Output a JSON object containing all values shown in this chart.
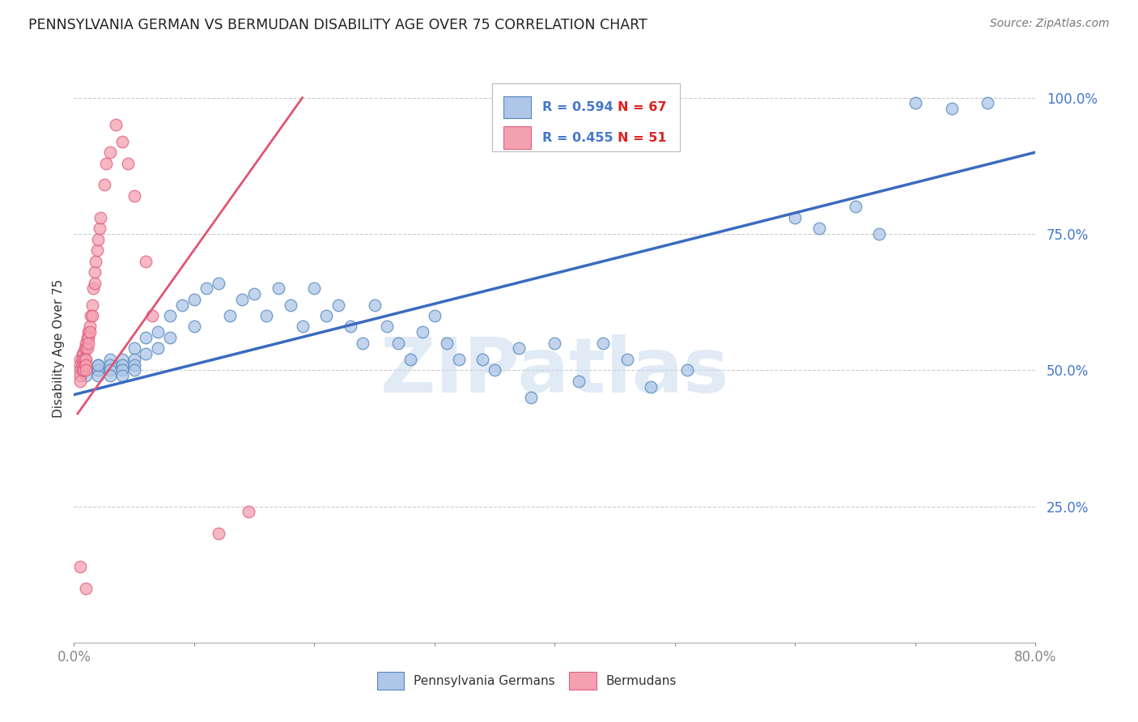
{
  "title": "PENNSYLVANIA GERMAN VS BERMUDAN DISABILITY AGE OVER 75 CORRELATION CHART",
  "source": "Source: ZipAtlas.com",
  "ylabel": "Disability Age Over 75",
  "xlim": [
    0.0,
    0.8
  ],
  "ylim": [
    0.0,
    1.08
  ],
  "x_ticks": [
    0.0,
    0.1,
    0.2,
    0.3,
    0.4,
    0.5,
    0.6,
    0.7,
    0.8
  ],
  "x_tick_labels": [
    "0.0%",
    "",
    "",
    "",
    "",
    "",
    "",
    "",
    "80.0%"
  ],
  "y_ticks_right": [
    0.25,
    0.5,
    0.75,
    1.0
  ],
  "y_tick_labels_right": [
    "25.0%",
    "50.0%",
    "75.0%",
    "100.0%"
  ],
  "grid_color": "#cccccc",
  "background_color": "#ffffff",
  "blue_scatter_face": "#aec6e8",
  "blue_scatter_edge": "#5588bb",
  "pink_scatter_face": "#f4a0b0",
  "pink_scatter_edge": "#e06080",
  "line_blue_color": "#3a6bbf",
  "line_pink_color": "#e05575",
  "legend_R_blue": "R = 0.594",
  "legend_N_blue": "N = 67",
  "legend_R_pink": "R = 0.455",
  "legend_N_pink": "N = 51",
  "legend_label_blue": "Pennsylvania Germans",
  "legend_label_pink": "Bermudans",
  "watermark": "ZIPatlas",
  "blue_x": [
    0.01,
    0.01,
    0.02,
    0.02,
    0.02,
    0.02,
    0.02,
    0.03,
    0.03,
    0.03,
    0.03,
    0.04,
    0.04,
    0.04,
    0.04,
    0.05,
    0.05,
    0.05,
    0.05,
    0.06,
    0.06,
    0.07,
    0.07,
    0.08,
    0.08,
    0.09,
    0.1,
    0.1,
    0.11,
    0.12,
    0.13,
    0.14,
    0.15,
    0.16,
    0.17,
    0.18,
    0.19,
    0.2,
    0.21,
    0.22,
    0.23,
    0.24,
    0.25,
    0.26,
    0.27,
    0.28,
    0.29,
    0.3,
    0.31,
    0.32,
    0.34,
    0.35,
    0.37,
    0.38,
    0.4,
    0.42,
    0.44,
    0.46,
    0.48,
    0.51,
    0.6,
    0.62,
    0.65,
    0.67,
    0.7,
    0.73,
    0.76
  ],
  "blue_y": [
    0.5,
    0.49,
    0.51,
    0.5,
    0.5,
    0.49,
    0.51,
    0.52,
    0.51,
    0.5,
    0.49,
    0.52,
    0.51,
    0.5,
    0.49,
    0.54,
    0.52,
    0.51,
    0.5,
    0.56,
    0.53,
    0.57,
    0.54,
    0.6,
    0.56,
    0.62,
    0.63,
    0.58,
    0.65,
    0.66,
    0.6,
    0.63,
    0.64,
    0.6,
    0.65,
    0.62,
    0.58,
    0.65,
    0.6,
    0.62,
    0.58,
    0.55,
    0.62,
    0.58,
    0.55,
    0.52,
    0.57,
    0.6,
    0.55,
    0.52,
    0.52,
    0.5,
    0.54,
    0.45,
    0.55,
    0.48,
    0.55,
    0.52,
    0.47,
    0.5,
    0.78,
    0.76,
    0.8,
    0.75,
    0.99,
    0.98,
    0.99
  ],
  "pink_x": [
    0.005,
    0.005,
    0.005,
    0.005,
    0.005,
    0.007,
    0.007,
    0.007,
    0.007,
    0.008,
    0.008,
    0.008,
    0.009,
    0.009,
    0.009,
    0.01,
    0.01,
    0.01,
    0.01,
    0.01,
    0.011,
    0.011,
    0.012,
    0.012,
    0.012,
    0.013,
    0.013,
    0.014,
    0.015,
    0.015,
    0.016,
    0.017,
    0.017,
    0.018,
    0.019,
    0.02,
    0.021,
    0.022,
    0.025,
    0.027,
    0.03,
    0.035,
    0.04,
    0.045,
    0.05,
    0.06,
    0.065,
    0.12,
    0.145,
    0.005,
    0.01
  ],
  "pink_y": [
    0.52,
    0.51,
    0.5,
    0.49,
    0.48,
    0.53,
    0.52,
    0.51,
    0.5,
    0.53,
    0.52,
    0.5,
    0.54,
    0.52,
    0.51,
    0.55,
    0.54,
    0.52,
    0.51,
    0.5,
    0.56,
    0.54,
    0.57,
    0.56,
    0.55,
    0.58,
    0.57,
    0.6,
    0.62,
    0.6,
    0.65,
    0.66,
    0.68,
    0.7,
    0.72,
    0.74,
    0.76,
    0.78,
    0.84,
    0.88,
    0.9,
    0.95,
    0.92,
    0.88,
    0.82,
    0.7,
    0.6,
    0.2,
    0.24,
    0.14,
    0.1
  ],
  "blue_line_x": [
    0.0,
    0.8
  ],
  "blue_line_y": [
    0.455,
    0.9
  ],
  "pink_line_x": [
    0.003,
    0.19
  ],
  "pink_line_y": [
    0.42,
    1.0
  ]
}
